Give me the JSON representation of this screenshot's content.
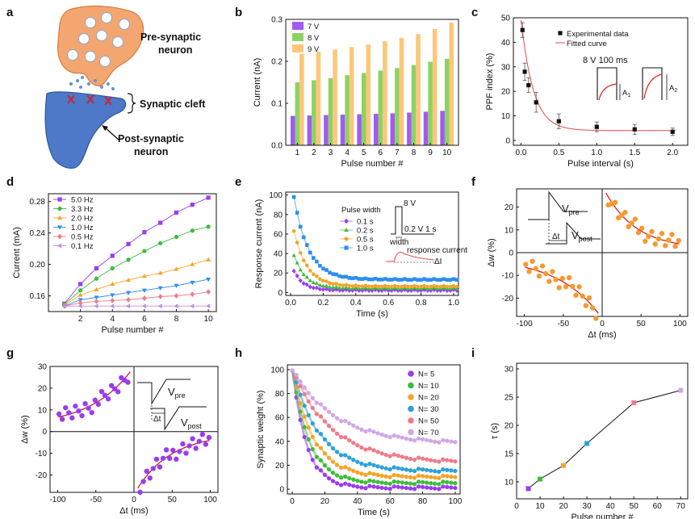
{
  "panel_labels": [
    "a",
    "b",
    "c",
    "d",
    "e",
    "f",
    "g",
    "h",
    "i"
  ],
  "diagram": {
    "pre_label_1": "Pre-synaptic",
    "pre_label_2": "neuron",
    "cleft_label": "Synaptic cleft",
    "post_label_1": "Post-synaptic",
    "post_label_2": "neuron"
  },
  "chart_data": [
    {
      "id": "b",
      "type": "bar",
      "title": "",
      "xlabel": "Pulse number #",
      "ylabel": "Current (nA)",
      "categories": [
        "1",
        "2",
        "3",
        "4",
        "5",
        "6",
        "7",
        "8",
        "9",
        "10"
      ],
      "ylim": [
        0,
        0.3
      ],
      "yticks": [
        "0.0",
        "0.1",
        "0.2",
        "0.3"
      ],
      "series": [
        {
          "name": "7 V",
          "color": "#a05cf0",
          "values": [
            0.07,
            0.071,
            0.072,
            0.073,
            0.074,
            0.075,
            0.076,
            0.078,
            0.08,
            0.082
          ]
        },
        {
          "name": "8 V",
          "color": "#8ed264",
          "values": [
            0.15,
            0.155,
            0.16,
            0.167,
            0.172,
            0.178,
            0.184,
            0.191,
            0.199,
            0.206
          ]
        },
        {
          "name": "9 V",
          "color": "#fcc77a",
          "values": [
            0.218,
            0.223,
            0.228,
            0.234,
            0.24,
            0.248,
            0.256,
            0.265,
            0.277,
            0.292
          ]
        }
      ]
    },
    {
      "id": "c",
      "type": "scatter",
      "title": "",
      "xlabel": "Pulse interval (s)",
      "ylabel": "PPF index (%)",
      "xlim": [
        -0.1,
        2.2
      ],
      "ylim": [
        -2,
        50
      ],
      "xticks": [
        "0.0",
        "0.5",
        "1.0",
        "1.5",
        "2.0"
      ],
      "yticks": [
        "0",
        "10",
        "20",
        "30",
        "40",
        "50"
      ],
      "legend": [
        "Experimental data",
        "Fitted curve"
      ],
      "annotation": "8 V 100 ms",
      "a1": "A",
      "a2": "A",
      "x": [
        0.02,
        0.05,
        0.1,
        0.2,
        0.5,
        1.0,
        1.5,
        2.0
      ],
      "y": [
        45,
        28,
        22.5,
        15.5,
        7.8,
        5.5,
        4.5,
        3.5
      ],
      "err": [
        3,
        3.5,
        3,
        4,
        3,
        2,
        2,
        1.5
      ],
      "fit": {
        "A": 46,
        "tau": 0.16,
        "offset": 4
      }
    },
    {
      "id": "d",
      "type": "line",
      "title": "",
      "xlabel": "Pulse number #",
      "ylabel": "Current (mA)",
      "xlim": [
        0,
        10.5
      ],
      "ylim": [
        0.14,
        0.29
      ],
      "xticks": [
        "2",
        "4",
        "6",
        "8",
        "10"
      ],
      "yticks": [
        "0.16",
        "0.20",
        "0.24",
        "0.28"
      ],
      "x": [
        1,
        2,
        3,
        4,
        5,
        6,
        7,
        8,
        9,
        10
      ],
      "series": [
        {
          "name": "5.0 Hz",
          "color": "#9a3cf0",
          "marker": "square",
          "values": [
            0.15,
            0.175,
            0.195,
            0.211,
            0.226,
            0.241,
            0.253,
            0.266,
            0.276,
            0.285
          ]
        },
        {
          "name": "3.3 Hz",
          "color": "#3cbc3c",
          "marker": "circle",
          "values": [
            0.149,
            0.167,
            0.182,
            0.195,
            0.206,
            0.217,
            0.227,
            0.235,
            0.243,
            0.248
          ]
        },
        {
          "name": "2.0 Hz",
          "color": "#f4a428",
          "marker": "triangle",
          "values": [
            0.148,
            0.161,
            0.168,
            0.175,
            0.18,
            0.185,
            0.189,
            0.194,
            0.2,
            0.206
          ]
        },
        {
          "name": "1.0 Hz",
          "color": "#2c8ef0",
          "marker": "triangle-down",
          "values": [
            0.147,
            0.155,
            0.158,
            0.161,
            0.164,
            0.167,
            0.17,
            0.173,
            0.177,
            0.181
          ]
        },
        {
          "name": "0.5 Hz",
          "color": "#f07a8a",
          "marker": "diamond",
          "values": [
            0.147,
            0.151,
            0.153,
            0.154,
            0.155,
            0.157,
            0.159,
            0.16,
            0.162,
            0.165
          ]
        },
        {
          "name": "0.1 Hz",
          "color": "#c88ce0",
          "marker": "triangle-left",
          "values": [
            0.147,
            0.147,
            0.147,
            0.147,
            0.147,
            0.147,
            0.147,
            0.147,
            0.147,
            0.147
          ]
        }
      ]
    },
    {
      "id": "e",
      "type": "scatter",
      "title": "",
      "xlabel": "Time (s)",
      "ylabel": "Response current (nA)",
      "xlim": [
        -0.03,
        1.03
      ],
      "ylim": [
        -3,
        103
      ],
      "xticks": [
        "0.0",
        "0.2",
        "0.4",
        "0.6",
        "0.8",
        "1.0"
      ],
      "yticks": [
        "0",
        "20",
        "40",
        "60",
        "80",
        "100"
      ],
      "legend_title": "Pulse width",
      "inset": {
        "voltage": "8 V",
        "timing": "0.2 V 1 s",
        "width": "width",
        "response": "response current",
        "delta": "ΔI"
      },
      "series": [
        {
          "name": "0.1 s",
          "color": "#9a3cf0",
          "marker": "diamond",
          "peak": 22,
          "tau": 0.06,
          "floor": 2
        },
        {
          "name": "0.2 s",
          "color": "#3cbc3c",
          "marker": "triangle",
          "peak": 38,
          "tau": 0.07,
          "floor": 4
        },
        {
          "name": "0.5 s",
          "color": "#f4a428",
          "marker": "circle",
          "peak": 63,
          "tau": 0.08,
          "floor": 6
        },
        {
          "name": "1.0 s",
          "color": "#2c8ef0",
          "marker": "square",
          "peak": 98,
          "tau": 0.09,
          "floor": 13
        }
      ]
    },
    {
      "id": "f",
      "type": "scatter",
      "title": "",
      "xlabel": "Δt (ms)",
      "ylabel": "Δw (%)",
      "xlim": [
        -110,
        110
      ],
      "ylim": [
        -28,
        28
      ],
      "xticks": [
        "-100",
        "-50",
        "0",
        "50",
        "100"
      ],
      "yticks": [
        "-20",
        "-10",
        "0",
        "10",
        "20"
      ],
      "inset": {
        "vpre": "V",
        "vpre_sub": "pre",
        "dt": "Δt",
        "vpost": "V",
        "vpost_sub": "post"
      },
      "color": "#f59a30",
      "pos": {
        "A": 28,
        "tau": 40,
        "offset": 1.5
      },
      "neg": {
        "A": -27,
        "tau": 55,
        "offset": -2
      }
    },
    {
      "id": "g",
      "type": "scatter",
      "title": "",
      "xlabel": "Δt (ms)",
      "ylabel": "Δw (%)",
      "xlim": [
        -110,
        110
      ],
      "ylim": [
        -28,
        30
      ],
      "xticks": [
        "-100",
        "-50",
        "0",
        "50",
        "100"
      ],
      "yticks": [
        "-20",
        "-10",
        "0",
        "10",
        "20",
        "30"
      ],
      "inset": {
        "vpre": "V",
        "vpre_sub": "pre",
        "dt": "Δt",
        "vpost": "V",
        "vpost_sub": "post"
      },
      "color": "#9a3cf0",
      "pos": {
        "A": 28,
        "tau": 55,
        "offset": 2
      },
      "neg": {
        "A": -28,
        "tau": 45,
        "offset": -1
      }
    },
    {
      "id": "h",
      "type": "scatter",
      "title": "",
      "xlabel": "Time (s)",
      "ylabel": "Synaptic weight (%)",
      "xlim": [
        -3,
        103
      ],
      "ylim": [
        -4,
        104
      ],
      "xticks": [
        "0",
        "20",
        "40",
        "60",
        "80",
        "100"
      ],
      "yticks": [
        "0",
        "20",
        "40",
        "60",
        "80",
        "100"
      ],
      "series": [
        {
          "name": "N= 5",
          "color": "#9a3cf0",
          "tau": 8.8,
          "floor": 1
        },
        {
          "name": "N= 10",
          "color": "#3cbc3c",
          "tau": 10.5,
          "floor": 5
        },
        {
          "name": "N= 20",
          "color": "#f4a428",
          "tau": 12.9,
          "floor": 10
        },
        {
          "name": "N= 30",
          "color": "#2ca0d8",
          "tau": 16.8,
          "floor": 15
        },
        {
          "name": "N= 50",
          "color": "#f07a8a",
          "tau": 24,
          "floor": 22
        },
        {
          "name": "N= 70",
          "color": "#d0a8e4",
          "tau": 26.2,
          "floor": 38
        }
      ]
    },
    {
      "id": "i",
      "type": "line",
      "title": "",
      "xlabel": "Pulse number #",
      "ylabel": "τ (s)",
      "xlim": [
        0,
        73
      ],
      "ylim": [
        7,
        31
      ],
      "xticks": [
        "0",
        "10",
        "20",
        "30",
        "40",
        "50",
        "60",
        "70"
      ],
      "yticks": [
        "10",
        "15",
        "20",
        "25",
        "30"
      ],
      "x": [
        5,
        10,
        20,
        30,
        50,
        70
      ],
      "y": [
        8.8,
        10.5,
        12.9,
        16.8,
        24.0,
        26.2
      ],
      "colors": [
        "#9a3cf0",
        "#3cbc3c",
        "#f4a428",
        "#2ca0d8",
        "#f07a8a",
        "#d0a8e4"
      ]
    }
  ]
}
